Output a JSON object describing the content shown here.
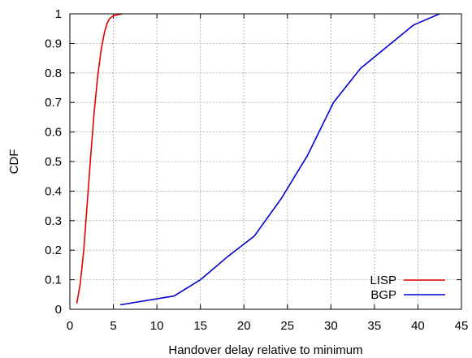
{
  "chart_data": {
    "type": "line",
    "title": "",
    "xlabel": "Handover delay relative to minimum",
    "ylabel": "CDF",
    "xlim": [
      0,
      45
    ],
    "ylim": [
      0,
      1
    ],
    "xticks": [
      "0",
      "5",
      "10",
      "15",
      "20",
      "25",
      "30",
      "35",
      "40",
      "45"
    ],
    "yticks": [
      "0",
      "0.1",
      "0.2",
      "0.3",
      "0.4",
      "0.5",
      "0.6",
      "0.7",
      "0.8",
      "0.9",
      "1"
    ],
    "grid": true,
    "legend_position": "bottom-right",
    "series": [
      {
        "name": "LISP",
        "color": "#e00000",
        "x": [
          0.8,
          1.2,
          1.6,
          2.0,
          2.4,
          2.8,
          3.2,
          3.6,
          4.0,
          4.3,
          4.6,
          5.0,
          5.5,
          6.0
        ],
        "y": [
          0.02,
          0.09,
          0.2,
          0.36,
          0.52,
          0.67,
          0.79,
          0.88,
          0.94,
          0.97,
          0.985,
          0.993,
          0.997,
          1.0
        ]
      },
      {
        "name": "BGP",
        "color": "#0000d0",
        "x": [
          5.8,
          12.0,
          15.0,
          18.0,
          21.2,
          24.3,
          27.3,
          30.3,
          33.4,
          36.5,
          39.5,
          42.5
        ],
        "y": [
          0.015,
          0.045,
          0.1,
          0.175,
          0.248,
          0.375,
          0.52,
          0.7,
          0.815,
          0.89,
          0.962,
          1.0
        ]
      }
    ]
  }
}
